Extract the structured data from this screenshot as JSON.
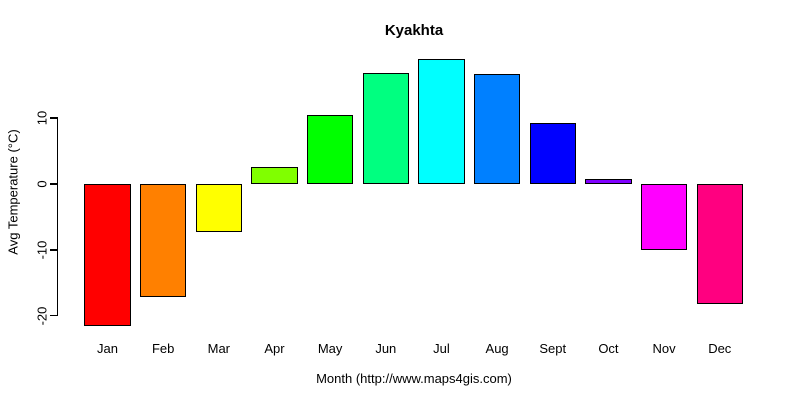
{
  "chart_data": {
    "type": "bar",
    "title": "Kyakhta",
    "xlabel": "Month (http://www.maps4gis.com)",
    "ylabel": "Avg Temperature (°C)",
    "categories": [
      "Jan",
      "Feb",
      "Mar",
      "Apr",
      "May",
      "Jun",
      "Jul",
      "Aug",
      "Sept",
      "Oct",
      "Nov",
      "Dec"
    ],
    "values": [
      -21.5,
      -17.2,
      -7.3,
      2.6,
      10.5,
      16.9,
      19.0,
      16.7,
      9.3,
      0.7,
      -10.0,
      -18.2
    ],
    "bar_colors": [
      "#FF0000",
      "#FF8000",
      "#FFFF00",
      "#80FF00",
      "#00FF00",
      "#00FF80",
      "#00FFFF",
      "#0080FF",
      "#0000FF",
      "#8000FF",
      "#FF00FF",
      "#FF0080"
    ],
    "bar_border_color": "#000000",
    "yticks": [
      10,
      0,
      -10,
      -20
    ],
    "ylim": [
      -22,
      20.5
    ],
    "grid": false,
    "legend": false,
    "background": "#FFFFFF",
    "text_color": "#000000"
  }
}
